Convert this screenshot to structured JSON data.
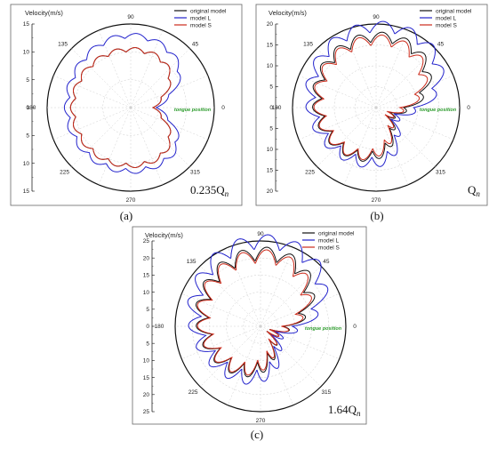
{
  "chart_data": [
    {
      "type": "line",
      "coordinate_system": "polar",
      "panel": "(a)",
      "flow_label": {
        "main": "0.235Q",
        "sub": "n"
      },
      "radial_label": "Velocity(m/s)",
      "radial_range": [
        0,
        15
      ],
      "radial_ticks": [
        "15",
        "10",
        "5",
        "0",
        "5",
        "10",
        "15"
      ],
      "angle_ticks": [
        "90",
        "45",
        "0",
        "315",
        "270",
        "225",
        "180",
        "135"
      ],
      "annotation": "tongue position",
      "legend": [
        "original model",
        "model L",
        "model S"
      ],
      "grid": true,
      "series": [
        {
          "name": "original model",
          "color": "#111111",
          "base": 10.4,
          "amp": 0.8,
          "ripples": 19,
          "notch_depth": 6.0,
          "notch_width": 50,
          "notch_center": 0
        },
        {
          "name": "model L",
          "color": "#2222cc",
          "base": 11.4,
          "amp": 0.9,
          "ripples": 19,
          "notch_depth": 6.4,
          "notch_width": 42,
          "notch_center": 0,
          "lobe_center": 90,
          "lobe_width": 35,
          "lobe_amp": 1.5
        },
        {
          "name": "model S",
          "color": "#cc2a1a",
          "base": 10.4,
          "amp": 0.8,
          "ripples": 19,
          "notch_depth": 6.0,
          "notch_width": 50,
          "notch_center": 0
        }
      ]
    },
    {
      "type": "line",
      "coordinate_system": "polar",
      "panel": "(b)",
      "flow_label": {
        "main": "Q",
        "sub": "n"
      },
      "radial_label": "Velocity(m/s)",
      "radial_range": [
        0,
        20
      ],
      "radial_ticks": [
        "20",
        "15",
        "10",
        "5",
        "0",
        "5",
        "10",
        "15",
        "20"
      ],
      "angle_ticks": [
        "90",
        "45",
        "0",
        "315",
        "270",
        "225",
        "180",
        "135"
      ],
      "annotation": "tongue position",
      "legend": [
        "original model",
        "model L",
        "model S"
      ],
      "grid": true,
      "series": [
        {
          "name": "original model",
          "color": "#111111",
          "base": 12.5,
          "amp": 2.4,
          "ripples": 19,
          "grow": 4.5,
          "notch_depth": 10.5,
          "notch_width": 70,
          "notch_center": 335
        },
        {
          "name": "model L",
          "color": "#2222cc",
          "base": 13.5,
          "amp": 2.6,
          "ripples": 19,
          "grow": 6.0,
          "notch_depth": 11.0,
          "notch_width": 60,
          "notch_center": 335
        },
        {
          "name": "model S",
          "color": "#cc2a1a",
          "base": 12.3,
          "amp": 2.5,
          "ripples": 19,
          "grow": 4.0,
          "notch_depth": 10.5,
          "notch_width": 75,
          "notch_center": 335
        }
      ]
    },
    {
      "type": "line",
      "coordinate_system": "polar",
      "panel": "(c)",
      "flow_label": {
        "main": "1.64Q",
        "sub": "n"
      },
      "radial_label": "Velocity(m/s)",
      "radial_range": [
        0,
        25
      ],
      "radial_ticks": [
        "25",
        "20",
        "15",
        "10",
        "5",
        "0",
        "5",
        "10",
        "15",
        "20",
        "25"
      ],
      "angle_ticks": [
        "90",
        "45",
        "0",
        "315",
        "270",
        "225",
        "180",
        "135"
      ],
      "annotation": "tongue position",
      "legend": [
        "original model",
        "model L",
        "model S"
      ],
      "grid": true,
      "series": [
        {
          "name": "original model",
          "color": "#111111",
          "base": 14.5,
          "amp": 4.0,
          "ripples": 19,
          "grow": 7.0,
          "notch_depth": 13.5,
          "notch_width": 80,
          "notch_center": 335
        },
        {
          "name": "model L",
          "color": "#2222cc",
          "base": 16.0,
          "amp": 4.2,
          "ripples": 19,
          "grow": 9.0,
          "notch_depth": 14.5,
          "notch_width": 70,
          "notch_center": 335
        },
        {
          "name": "model S",
          "color": "#cc2a1a",
          "base": 14.3,
          "amp": 4.0,
          "ripples": 19,
          "grow": 6.5,
          "notch_depth": 13.0,
          "notch_width": 85,
          "notch_center": 335
        }
      ]
    }
  ]
}
